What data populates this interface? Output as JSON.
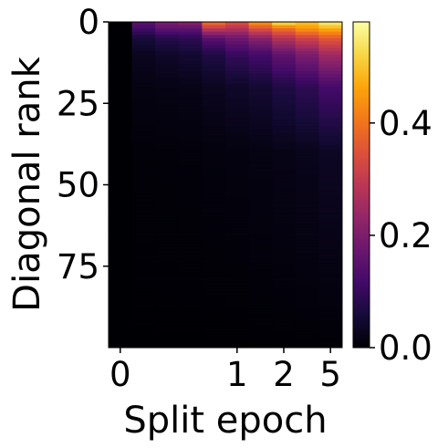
{
  "chart_data": {
    "type": "heatmap",
    "title": "",
    "xlabel": "Split epoch",
    "ylabel": "Diagonal rank",
    "colormap": "inferno",
    "x_columns": 9,
    "x_tick_labels": [
      {
        "column": 0,
        "label": "0"
      },
      {
        "column": 5,
        "label": "1"
      },
      {
        "column": 7,
        "label": "2"
      },
      {
        "column": 9,
        "label": "5"
      }
    ],
    "y_range": [
      0,
      100
    ],
    "y_ticks": [
      0,
      25,
      50,
      75
    ],
    "y_tick_labels": [
      "0",
      "25",
      "50",
      "75"
    ],
    "colorbar": {
      "range": [
        0.0,
        0.58
      ],
      "ticks": [
        0.0,
        0.2,
        0.4
      ],
      "tick_labels": [
        "0.0",
        "0.2",
        "0.4"
      ]
    },
    "columns": [
      {
        "index": 0,
        "values": [
          [
            0,
            0.0
          ],
          [
            100,
            0.0
          ]
        ]
      },
      {
        "index": 1,
        "values": [
          [
            0,
            0.15
          ],
          [
            2,
            0.12
          ],
          [
            5,
            0.06
          ],
          [
            10,
            0.03
          ],
          [
            20,
            0.015
          ],
          [
            40,
            0.005
          ],
          [
            100,
            0.0
          ]
        ]
      },
      {
        "index": 2,
        "values": [
          [
            0,
            0.2
          ],
          [
            2,
            0.16
          ],
          [
            5,
            0.08
          ],
          [
            10,
            0.04
          ],
          [
            20,
            0.018
          ],
          [
            40,
            0.006
          ],
          [
            100,
            0.0
          ]
        ]
      },
      {
        "index": 3,
        "values": [
          [
            0,
            0.22
          ],
          [
            2,
            0.16
          ],
          [
            5,
            0.09
          ],
          [
            10,
            0.05
          ],
          [
            20,
            0.02
          ],
          [
            40,
            0.007
          ],
          [
            100,
            0.0
          ]
        ]
      },
      {
        "index": 4,
        "values": [
          [
            0,
            0.4
          ],
          [
            2,
            0.3
          ],
          [
            5,
            0.15
          ],
          [
            10,
            0.07
          ],
          [
            20,
            0.03
          ],
          [
            40,
            0.01
          ],
          [
            100,
            0.0
          ]
        ]
      },
      {
        "index": 5,
        "values": [
          [
            0,
            0.35
          ],
          [
            2,
            0.28
          ],
          [
            5,
            0.18
          ],
          [
            10,
            0.1
          ],
          [
            20,
            0.04
          ],
          [
            40,
            0.012
          ],
          [
            100,
            0.0
          ]
        ]
      },
      {
        "index": 6,
        "values": [
          [
            0,
            0.45
          ],
          [
            2,
            0.35
          ],
          [
            5,
            0.22
          ],
          [
            10,
            0.12
          ],
          [
            20,
            0.05
          ],
          [
            40,
            0.015
          ],
          [
            100,
            0.001
          ]
        ]
      },
      {
        "index": 7,
        "values": [
          [
            0,
            0.55
          ],
          [
            2,
            0.4
          ],
          [
            5,
            0.28
          ],
          [
            10,
            0.16
          ],
          [
            20,
            0.07
          ],
          [
            40,
            0.02
          ],
          [
            100,
            0.001
          ]
        ]
      },
      {
        "index": 8,
        "values": [
          [
            0,
            0.5
          ],
          [
            2,
            0.45
          ],
          [
            5,
            0.32
          ],
          [
            10,
            0.2
          ],
          [
            20,
            0.09
          ],
          [
            40,
            0.025
          ],
          [
            100,
            0.002
          ]
        ]
      },
      {
        "index": 9,
        "values": [
          [
            0,
            0.56
          ],
          [
            2,
            0.48
          ],
          [
            5,
            0.36
          ],
          [
            10,
            0.25
          ],
          [
            20,
            0.12
          ],
          [
            40,
            0.035
          ],
          [
            100,
            0.002
          ]
        ]
      }
    ]
  }
}
